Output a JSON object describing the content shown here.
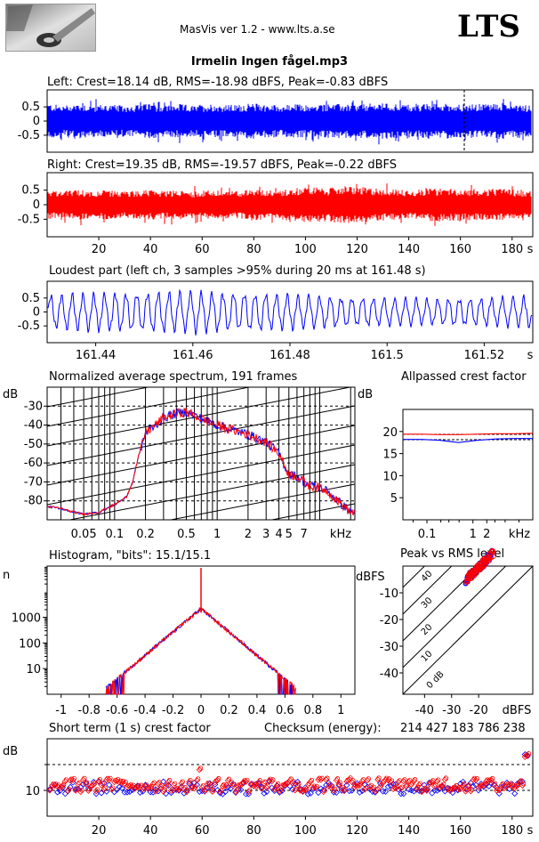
{
  "app": {
    "title": "MasVis ver 1.2 - www.lts.a.se",
    "logo_text": "LTS"
  },
  "file_title": "Irmelin Ingen fågel.mp3",
  "colors": {
    "left": "#0000ff",
    "right": "#ff0000"
  },
  "chart_data": [
    {
      "type": "line",
      "title": "Left: Crest=18.14 dB, RMS=-18.98 dBFS, Peak=-0.83 dBFS",
      "series": [
        {
          "name": "left",
          "color": "#0000ff"
        }
      ],
      "yticks": [
        "0.5",
        "0",
        "-0.5"
      ],
      "ylim": [
        -1,
        1
      ],
      "xlim": [
        0,
        188
      ],
      "marker_x": 161.48,
      "envelope": [
        0.62,
        0.55,
        0.63,
        0.57,
        0.6,
        0.55,
        0.58,
        0.62,
        0.56,
        0.6,
        0.54,
        0.61,
        0.57,
        0.58,
        0.63,
        0.59,
        0.56,
        0.6,
        0.55,
        0.61,
        0.6,
        0.58,
        0.62,
        0.64,
        0.6,
        0.58,
        0.61,
        0.63,
        0.6,
        0.59,
        0.62,
        0.64,
        0.6,
        0.58
      ]
    },
    {
      "type": "line",
      "title": "Right: Crest=19.35 dB, RMS=-19.57 dBFS, Peak=-0.22 dBFS",
      "series": [
        {
          "name": "right",
          "color": "#ff0000"
        }
      ],
      "yticks": [
        "0.5",
        "0",
        "-0.5"
      ],
      "ylim": [
        -1,
        1
      ],
      "xlim": [
        0,
        188
      ],
      "xticks": [
        "20",
        "40",
        "60",
        "80",
        "100",
        "120",
        "140",
        "160",
        "180"
      ],
      "xunit": "s",
      "envelope": [
        0.5,
        0.45,
        0.52,
        0.47,
        0.5,
        0.46,
        0.48,
        0.52,
        0.47,
        0.5,
        0.45,
        0.51,
        0.47,
        0.48,
        0.55,
        0.5,
        0.52,
        0.58,
        0.62,
        0.56,
        0.65,
        0.62,
        0.58,
        0.55,
        0.52,
        0.5,
        0.56,
        0.58,
        0.55,
        0.52,
        0.54,
        0.55,
        0.5,
        0.46
      ]
    },
    {
      "type": "line",
      "title": "Loudest part (left  ch, 3 samples >95% during 20 ms at 161.48 s)",
      "series": [
        {
          "name": "left",
          "color": "#0000ff"
        }
      ],
      "yticks": [
        "0.5",
        "0",
        "-0.5"
      ],
      "ylim": [
        -1,
        1
      ],
      "xlim": [
        161.43,
        161.53
      ],
      "xticks": [
        "161.44",
        "161.46",
        "161.48",
        "161.5",
        "161.52"
      ],
      "xunit": "s",
      "cycles": 45,
      "amplitude": 0.55
    },
    {
      "type": "line",
      "title": "Normalized average spectrum, 191 frames",
      "ylabel": "dB",
      "yticks": [
        "-30",
        "-40",
        "-50",
        "-60",
        "-70",
        "-80"
      ],
      "ylim": [
        -90,
        -20
      ],
      "xticks": [
        "0.05",
        "0.1",
        "0.2",
        "0.5",
        "1",
        "2",
        "3",
        "4",
        "5",
        "7"
      ],
      "xunit": "kHz",
      "xlim": [
        0.022,
        22
      ],
      "series": [
        {
          "name": "left",
          "color": "#0000ff"
        },
        {
          "name": "right",
          "color": "#ff0000"
        }
      ],
      "points": [
        [
          0.022,
          -83
        ],
        [
          0.03,
          -84
        ],
        [
          0.04,
          -86
        ],
        [
          0.05,
          -87
        ],
        [
          0.07,
          -86
        ],
        [
          0.1,
          -82
        ],
        [
          0.13,
          -78
        ],
        [
          0.15,
          -70
        ],
        [
          0.17,
          -57
        ],
        [
          0.2,
          -44
        ],
        [
          0.25,
          -40
        ],
        [
          0.3,
          -36
        ],
        [
          0.4,
          -34
        ],
        [
          0.5,
          -33
        ],
        [
          0.6,
          -35
        ],
        [
          0.8,
          -38
        ],
        [
          1,
          -40
        ],
        [
          1.5,
          -43
        ],
        [
          2,
          -45
        ],
        [
          3,
          -49
        ],
        [
          4,
          -55
        ],
        [
          5,
          -66
        ],
        [
          6,
          -67
        ],
        [
          7,
          -70
        ],
        [
          8,
          -72
        ],
        [
          10,
          -73
        ],
        [
          12,
          -75
        ],
        [
          15,
          -80
        ],
        [
          20,
          -86
        ]
      ]
    },
    {
      "type": "line",
      "title": "Allpassed crest factor",
      "ylabel": "dB",
      "yticks": [
        "20",
        "15",
        "10",
        "5"
      ],
      "ylim": [
        0,
        25
      ],
      "xticks": [
        "0.1",
        "1",
        "2"
      ],
      "xunit": "kHz",
      "xlim": [
        0.03,
        20
      ],
      "series": [
        {
          "name": "left",
          "color": "#0000ff",
          "values": [
            18.2,
            18.2,
            18.0,
            17.5,
            18.0,
            18.3,
            18.4,
            18.4
          ]
        },
        {
          "name": "right",
          "color": "#ff0000",
          "values": [
            19.4,
            19.4,
            19.3,
            19.3,
            19.4,
            19.5,
            19.5,
            19.6
          ]
        }
      ],
      "dashed": [
        18.14,
        19.35
      ]
    },
    {
      "type": "line",
      "title": "Histogram, \"bits\": 15.1/15.1",
      "ylabel": "n",
      "yticks": [
        "1000",
        "100",
        "10"
      ],
      "yscale": "log",
      "ylim": [
        1,
        100000
      ],
      "xticks": [
        "-1",
        "-0.8",
        "-0.6",
        "-0.4",
        "-0.2",
        "0",
        "0.2",
        "0.4",
        "0.6",
        "0.8",
        "1"
      ],
      "xlim": [
        -1.1,
        1.1
      ],
      "series": [
        {
          "name": "left",
          "color": "#0000ff"
        },
        {
          "name": "right",
          "color": "#ff0000"
        }
      ]
    },
    {
      "type": "scatter",
      "title": "Peak vs RMS level",
      "ylabel": "dBFS",
      "yticks": [
        "-10",
        "-20",
        "-30",
        "-40"
      ],
      "ylim": [
        -48,
        0
      ],
      "xticks": [
        "-40",
        "-30",
        "-20"
      ],
      "xunit": "dBFS",
      "xlim": [
        -48,
        0
      ],
      "diag_labels": [
        "40",
        "30",
        "20",
        "10",
        "0 dB"
      ],
      "series": [
        {
          "name": "left",
          "color": "#0000ff"
        },
        {
          "name": "right",
          "color": "#ff0000"
        }
      ]
    },
    {
      "type": "scatter",
      "title": "Short term (1 s) crest factor",
      "ylabel": "dB",
      "checksum_label": "Checksum (energy):",
      "checksum_value": "214 427 183 786 238",
      "yticks": [
        "10"
      ],
      "ylim": [
        0,
        30
      ],
      "xticks": [
        "20",
        "40",
        "60",
        "80",
        "100",
        "120",
        "140",
        "160",
        "180"
      ],
      "xunit": "s",
      "xlim": [
        0,
        188
      ],
      "series": [
        {
          "name": "left",
          "color": "#0000ff"
        },
        {
          "name": "right",
          "color": "#ff0000"
        }
      ]
    }
  ]
}
